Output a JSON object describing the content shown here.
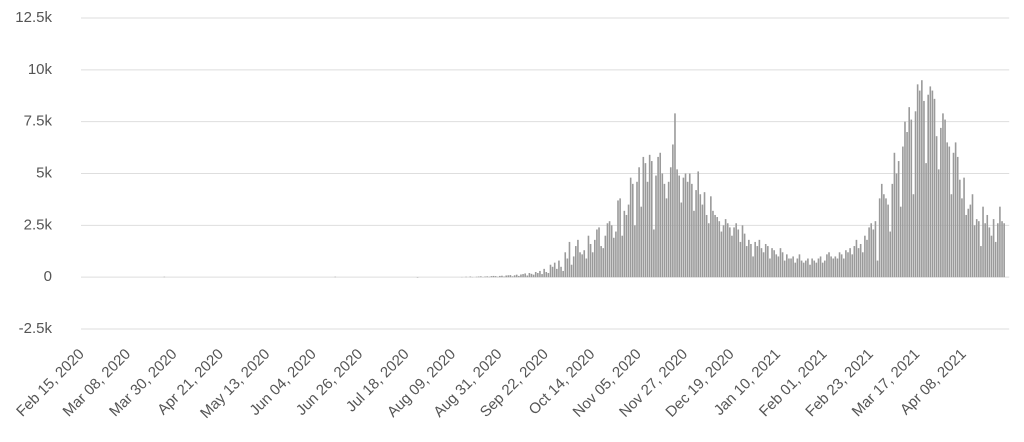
{
  "chart_data": {
    "type": "bar",
    "color": "#9a9a9a",
    "grid": true,
    "ylim": [
      -2500,
      12500
    ],
    "yticks": [
      {
        "value": -2500,
        "label": "-2.5k"
      },
      0,
      {
        "value": 2500,
        "label": "2.5k"
      },
      {
        "value": 5000,
        "label": "5k"
      },
      {
        "value": 7500,
        "label": "7.5k"
      },
      {
        "value": 10000,
        "label": "10k"
      },
      {
        "value": 12500,
        "label": "12.5k"
      }
    ],
    "categories": [
      "Feb 15, 2020",
      null,
      null,
      null,
      null,
      null,
      null,
      null,
      null,
      null,
      null,
      null,
      null,
      null,
      null,
      null,
      null,
      null,
      null,
      null,
      null,
      null,
      "Mar 08, 2020",
      null,
      null,
      null,
      null,
      null,
      null,
      null,
      null,
      null,
      null,
      null,
      null,
      null,
      null,
      null,
      null,
      null,
      null,
      null,
      null,
      null,
      "Mar 30, 2020",
      null,
      null,
      null,
      null,
      null,
      null,
      null,
      null,
      null,
      null,
      null,
      null,
      null,
      null,
      null,
      null,
      null,
      null,
      null,
      null,
      null,
      "Apr 21, 2020",
      null,
      null,
      null,
      null,
      null,
      null,
      null,
      null,
      null,
      null,
      null,
      null,
      null,
      null,
      null,
      null,
      null,
      null,
      null,
      null,
      null,
      "May 13, 2020",
      null,
      null,
      null,
      null,
      null,
      null,
      null,
      null,
      null,
      null,
      null,
      null,
      null,
      null,
      null,
      null,
      null,
      null,
      null,
      null,
      null,
      "Jun 04, 2020",
      null,
      null,
      null,
      null,
      null,
      null,
      null,
      null,
      null,
      null,
      null,
      null,
      null,
      null,
      null,
      null,
      null,
      null,
      null,
      null,
      null,
      "Jun 26, 2020",
      null,
      null,
      null,
      null,
      null,
      null,
      null,
      null,
      null,
      null,
      null,
      null,
      null,
      null,
      null,
      null,
      null,
      null,
      null,
      null,
      null,
      "Jul 18, 2020",
      null,
      null,
      null,
      null,
      null,
      null,
      null,
      null,
      null,
      null,
      null,
      null,
      null,
      null,
      null,
      null,
      null,
      null,
      null,
      null,
      null,
      "Aug 09, 2020",
      null,
      null,
      null,
      null,
      null,
      null,
      null,
      null,
      null,
      null,
      null,
      null,
      null,
      null,
      null,
      null,
      null,
      null,
      null,
      null,
      null,
      "Aug 31, 2020",
      null,
      null,
      null,
      null,
      null,
      null,
      null,
      null,
      null,
      null,
      null,
      null,
      null,
      null,
      null,
      null,
      null,
      null,
      null,
      null,
      null,
      "Sep 22, 2020",
      null,
      null,
      null,
      null,
      null,
      null,
      null,
      null,
      null,
      null,
      null,
      null,
      null,
      null,
      null,
      null,
      null,
      null,
      null,
      null,
      null,
      "Oct 14, 2020",
      null,
      null,
      null,
      null,
      null,
      null,
      null,
      null,
      null,
      null,
      null,
      null,
      null,
      null,
      null,
      null,
      null,
      null,
      null,
      null,
      null,
      "Nov 05, 2020",
      null,
      null,
      null,
      null,
      null,
      null,
      null,
      null,
      null,
      null,
      null,
      null,
      null,
      null,
      null,
      null,
      null,
      null,
      null,
      null,
      null,
      "Nov 27, 2020",
      null,
      null,
      null,
      null,
      null,
      null,
      null,
      null,
      null,
      null,
      null,
      null,
      null,
      null,
      null,
      null,
      null,
      null,
      null,
      null,
      null,
      "Dec 19, 2020",
      null,
      null,
      null,
      null,
      null,
      null,
      null,
      null,
      null,
      null,
      null,
      null,
      null,
      null,
      null,
      null,
      null,
      null,
      null,
      null,
      null,
      "Jan 10, 2021",
      null,
      null,
      null,
      null,
      null,
      null,
      null,
      null,
      null,
      null,
      null,
      null,
      null,
      null,
      null,
      null,
      null,
      null,
      null,
      null,
      null,
      "Feb 01, 2021",
      null,
      null,
      null,
      null,
      null,
      null,
      null,
      null,
      null,
      null,
      null,
      null,
      null,
      null,
      null,
      null,
      null,
      null,
      null,
      null,
      null,
      "Feb 23, 2021",
      null,
      null,
      null,
      null,
      null,
      null,
      null,
      null,
      null,
      null,
      null,
      null,
      null,
      null,
      null,
      null,
      null,
      null,
      null,
      null,
      null,
      "Mar 17, 2021",
      null,
      null,
      null,
      null,
      null,
      null,
      null,
      null,
      null,
      null,
      null,
      null,
      null,
      null,
      null,
      null,
      null,
      null,
      null,
      null,
      null,
      "Apr 08, 2021",
      null,
      null,
      null,
      null,
      null,
      null,
      null,
      null,
      null,
      null,
      null,
      null,
      null,
      null,
      null,
      null,
      null,
      null,
      null
    ],
    "values": [
      0,
      0,
      0,
      0,
      0,
      0,
      0,
      0,
      0,
      0,
      0,
      0,
      0,
      0,
      0,
      0,
      0,
      0,
      0,
      0,
      0,
      0,
      0,
      0,
      0,
      0,
      0,
      0,
      0,
      0,
      0,
      0,
      0,
      0,
      0,
      0,
      0,
      0,
      0,
      20,
      0,
      0,
      0,
      0,
      0,
      0,
      0,
      0,
      0,
      0,
      0,
      0,
      0,
      0,
      0,
      0,
      0,
      0,
      0,
      0,
      0,
      0,
      0,
      0,
      0,
      0,
      0,
      0,
      0,
      0,
      0,
      0,
      0,
      0,
      0,
      0,
      0,
      0,
      0,
      0,
      0,
      0,
      0,
      0,
      0,
      0,
      0,
      0,
      0,
      0,
      0,
      0,
      0,
      0,
      0,
      0,
      0,
      0,
      0,
      0,
      0,
      0,
      0,
      0,
      0,
      0,
      0,
      0,
      0,
      0,
      0,
      0,
      0,
      0,
      0,
      0,
      0,
      0,
      0,
      0,
      20,
      0,
      0,
      0,
      0,
      0,
      0,
      0,
      0,
      0,
      0,
      0,
      0,
      0,
      0,
      0,
      0,
      0,
      0,
      0,
      0,
      0,
      0,
      0,
      0,
      0,
      0,
      0,
      0,
      0,
      0,
      0,
      0,
      0,
      0,
      0,
      0,
      0,
      0,
      -20,
      0,
      0,
      0,
      0,
      0,
      0,
      0,
      0,
      0,
      0,
      0,
      0,
      0,
      0,
      0,
      0,
      0,
      0,
      0,
      0,
      10,
      0,
      20,
      0,
      30,
      10,
      0,
      20,
      30,
      40,
      10,
      30,
      40,
      20,
      50,
      60,
      50,
      20,
      60,
      70,
      30,
      80,
      90,
      100,
      40,
      90,
      120,
      60,
      130,
      150,
      180,
      80,
      200,
      160,
      120,
      250,
      200,
      300,
      150,
      400,
      250,
      200,
      600,
      500,
      700,
      400,
      800,
      500,
      300,
      1200,
      900,
      1700,
      600,
      1000,
      1500,
      1800,
      1200,
      1100,
      1300,
      900,
      2000,
      1600,
      1200,
      1800,
      2300,
      2400,
      1500,
      1400,
      2000,
      2600,
      2700,
      2500,
      1900,
      2200,
      3700,
      3800,
      2000,
      3200,
      3000,
      3500,
      4800,
      4500,
      2500,
      4600,
      5300,
      3400,
      5800,
      5500,
      4600,
      5900,
      5600,
      2300,
      4900,
      5800,
      6000,
      5000,
      4500,
      3800,
      4600,
      5300,
      6400,
      7900,
      5200,
      4900,
      3600,
      4800,
      5000,
      4600,
      5000,
      4500,
      3200,
      4200,
      5100,
      4000,
      3500,
      4100,
      3000,
      2600,
      3900,
      3200,
      3000,
      2900,
      2700,
      2200,
      2500,
      2800,
      2600,
      2400,
      2000,
      2400,
      2600,
      2300,
      1700,
      2500,
      2100,
      1500,
      1800,
      1600,
      1000,
      1700,
      1500,
      1800,
      1400,
      1200,
      1600,
      1500,
      900,
      1400,
      1300,
      1100,
      1000,
      1400,
      1200,
      800,
      1100,
      900,
      900,
      1000,
      700,
      900,
      1100,
      800,
      700,
      800,
      900,
      600,
      900,
      800,
      700,
      900,
      1000,
      700,
      800,
      1100,
      1200,
      1000,
      900,
      1000,
      900,
      1200,
      1100,
      900,
      1300,
      1200,
      1400,
      1100,
      1500,
      1800,
      1400,
      1600,
      1200,
      2000,
      1800,
      2400,
      2600,
      2300,
      2700,
      800,
      3800,
      4500,
      4000,
      3800,
      3500,
      2200,
      4500,
      6000,
      5000,
      5600,
      3400,
      6300,
      7500,
      7000,
      8200,
      7600,
      4000,
      8000,
      9300,
      9000,
      9500,
      8500,
      5500,
      8800,
      9200,
      9000,
      8600,
      6800,
      5200,
      7200,
      7900,
      7600,
      6500,
      6300,
      4000,
      6000,
      6500,
      5800,
      4700,
      3800,
      4800,
      3000,
      3300,
      3500,
      4000,
      2500,
      2800,
      2700,
      1500,
      3400,
      2600,
      3000,
      2400,
      2000,
      2800,
      1700,
      2600,
      3400,
      2700,
      2600
    ]
  }
}
